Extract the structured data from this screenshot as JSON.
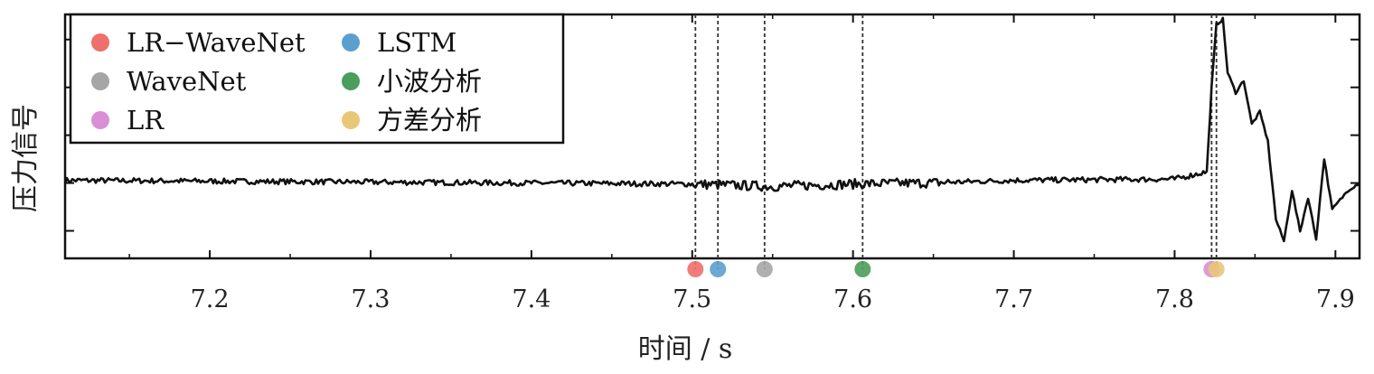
{
  "chart_data": {
    "type": "line",
    "xlabel": "时间 / s",
    "ylabel": "压力信号",
    "xlim": [
      7.11,
      7.915
    ],
    "ylim": [
      0,
      1
    ],
    "x_ticks": [
      {
        "value": 7.2,
        "label": "7.2"
      },
      {
        "value": 7.3,
        "label": "7.3"
      },
      {
        "value": 7.4,
        "label": "7.4"
      },
      {
        "value": 7.5,
        "label": "7.5"
      },
      {
        "value": 7.6,
        "label": "7.6"
      },
      {
        "value": 7.7,
        "label": "7.7"
      },
      {
        "value": 7.8,
        "label": "7.8"
      },
      {
        "value": 7.9,
        "label": "7.9"
      }
    ],
    "y_ticks_count": 5,
    "grid": false,
    "legend_position": "top-left",
    "series": [
      {
        "x": [
          7.11,
          7.5,
          7.55,
          7.6,
          7.65,
          7.7,
          7.8,
          7.82,
          7.823,
          7.826,
          7.83,
          7.833,
          7.838,
          7.843,
          7.848,
          7.853,
          7.858,
          7.863,
          7.868,
          7.873,
          7.878,
          7.883,
          7.888,
          7.893,
          7.898,
          7.903,
          7.908,
          7.915
        ],
        "values": [
          0.32,
          0.305,
          0.295,
          0.305,
          0.31,
          0.32,
          0.325,
          0.355,
          0.7,
          0.96,
          0.98,
          0.76,
          0.68,
          0.73,
          0.55,
          0.6,
          0.48,
          0.16,
          0.07,
          0.28,
          0.11,
          0.25,
          0.08,
          0.41,
          0.2,
          0.24,
          0.28,
          0.31
        ]
      }
    ],
    "detections": [
      {
        "method": "LR-WaveNet",
        "x": 7.502,
        "color": "#ef6f6c"
      },
      {
        "method": "LSTM",
        "x": 7.516,
        "color": "#5b9fcf"
      },
      {
        "method": "WaveNet",
        "x": 7.545,
        "color": "#a6a6a6"
      },
      {
        "method": "小波分析",
        "x": 7.606,
        "color": "#4b9d5b"
      },
      {
        "method": "LR",
        "x": 7.823,
        "color": "#d98ed6"
      },
      {
        "method": "方差分析",
        "x": 7.826,
        "color": "#e8c878"
      }
    ],
    "legend": [
      {
        "label": "LR−WaveNet",
        "color": "#ef6f6c"
      },
      {
        "label": "WaveNet",
        "color": "#a6a6a6"
      },
      {
        "label": "LR",
        "color": "#d98ed6"
      },
      {
        "label": "LSTM",
        "color": "#5b9fcf"
      },
      {
        "label": "小波分析",
        "color": "#4b9d5b"
      },
      {
        "label": "方差分析",
        "color": "#e8c878"
      }
    ]
  }
}
